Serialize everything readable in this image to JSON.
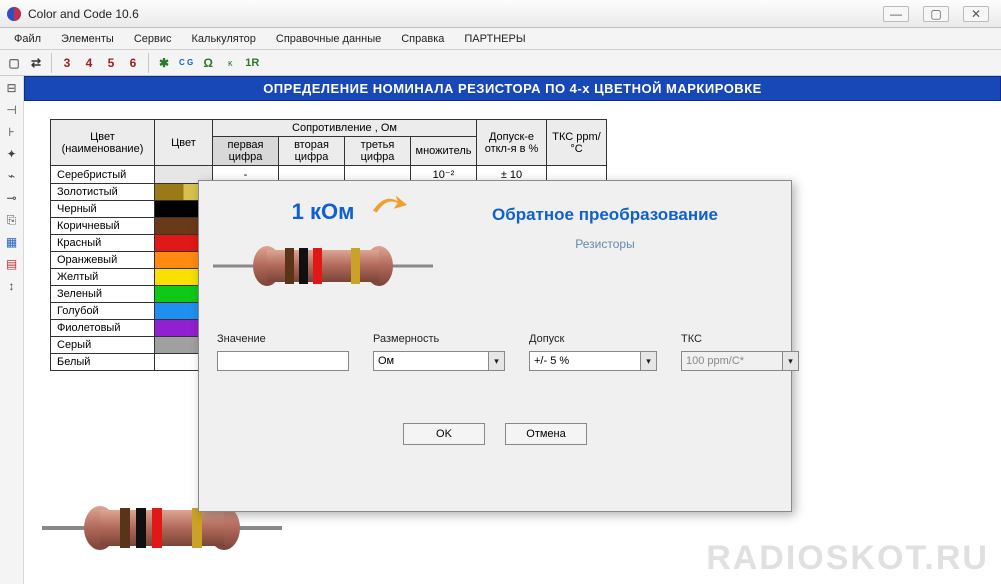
{
  "window": {
    "title": "Color and Code 10.6"
  },
  "menu": {
    "items": [
      "Файл",
      "Элементы",
      "Сервис",
      "Калькулятор",
      "Справочные данные",
      "Справка",
      "ПАРТНЕРЫ"
    ]
  },
  "toolbar": {
    "new_icon": "▢",
    "swap_icon": "⇄",
    "n3": "3",
    "n4": "4",
    "n5": "5",
    "n6": "6",
    "star_icon": "✱",
    "cg_icon": "C G",
    "ohm_icon": "Ω",
    "k_icon": "ᴋ",
    "one_r": "1R",
    "n3_color": "#a02020",
    "n4_color": "#a02020",
    "n5_color": "#a02020",
    "n6_color": "#a02020"
  },
  "left_icons": [
    "⊟",
    "⊣",
    "⊦",
    "✦",
    "⌁",
    "⊸",
    "⎘",
    "▦",
    "▤",
    "↕"
  ],
  "banner": "ОПРЕДЕЛЕНИЕ НОМИНАЛА РЕЗИСТОРА ПО 4-х ЦВЕТНОЙ МАРКИРОВКЕ",
  "table": {
    "head": {
      "name": "Цвет (наименование)",
      "color": "Цвет",
      "resist": "Сопротивление , Ом",
      "d1": "первая цифра",
      "d2": "вторая цифра",
      "d3": "третья цифра",
      "mult": "множитель",
      "tol": "Допуск-е откл-я в %",
      "tks": "ТКС ppm/°C"
    },
    "rows": [
      {
        "name": "Серебристый",
        "swatch": "#e6e6e6",
        "d1": "-",
        "d2": "",
        "d3": "",
        "mult": "10⁻²",
        "tol": "± 10",
        "tks": ""
      },
      {
        "name": "Золотистый",
        "swatch_split": [
          "#9a7a18",
          "#d8c050"
        ],
        "d1": "",
        "d2": "",
        "d3": "",
        "mult": "",
        "tol": "",
        "tks": ""
      },
      {
        "name": "Черный",
        "swatch": "#000000",
        "d1": "",
        "d2": "",
        "d3": "",
        "mult": "",
        "tol": "",
        "tks": ""
      },
      {
        "name": "Коричневый",
        "swatch": "#6a3a18",
        "d1": "",
        "d2": "",
        "d3": "",
        "mult": "",
        "tol": "",
        "tks": ""
      },
      {
        "name": "Красный",
        "swatch": "#e01818",
        "d1": "",
        "d2": "",
        "d3": "",
        "mult": "",
        "tol": "",
        "tks": ""
      },
      {
        "name": "Оранжевый",
        "swatch": "#ff8a10",
        "d1": "",
        "d2": "",
        "d3": "",
        "mult": "",
        "tol": "",
        "tks": ""
      },
      {
        "name": "Желтый",
        "swatch": "#f8e000",
        "d1": "",
        "d2": "",
        "d3": "",
        "mult": "",
        "tol": "",
        "tks": ""
      },
      {
        "name": "Зеленый",
        "swatch": "#10c818",
        "d1": "",
        "d2": "",
        "d3": "",
        "mult": "",
        "tol": "",
        "tks": ""
      },
      {
        "name": "Голубой",
        "swatch": "#2090f0",
        "d1": "",
        "d2": "",
        "d3": "",
        "mult": "",
        "tol": "",
        "tks": ""
      },
      {
        "name": "Фиолетовый",
        "swatch": "#9020d0",
        "d1": "",
        "d2": "",
        "d3": "",
        "mult": "",
        "tol": "",
        "tks": ""
      },
      {
        "name": "Серый",
        "swatch": "#a0a0a0",
        "d1": "",
        "d2": "",
        "d3": "",
        "mult": "",
        "tol": "",
        "tks": ""
      },
      {
        "name": "Белый",
        "swatch": "#ffffff",
        "d1": "",
        "d2": "",
        "d3": "",
        "mult": "",
        "tol": "",
        "tks": ""
      }
    ],
    "col_widths": {
      "name": 104,
      "swatch": 58,
      "d": 66,
      "mult": 66,
      "tol": 70,
      "tks": 60
    }
  },
  "resistor_main": {
    "body_color": "#b0685a",
    "body_highlight": "#dda592",
    "bands": [
      "#5a3418",
      "#101010",
      "#e01818",
      "#c9a227"
    ],
    "lead_color": "#888888"
  },
  "dialog": {
    "value_label": "1 кОм",
    "title": "Обратное преобразование",
    "subtitle": "Резисторы",
    "form": {
      "value_label": "Значение",
      "value_placeholder": "",
      "dim_label": "Размерность",
      "dim_value": "Ом",
      "tol_label": "Допуск",
      "tol_value": "+/- 5 %",
      "tks_label": "ТКС",
      "tks_value": "100 ppm/C*"
    },
    "ok": "OK",
    "cancel": "Отмена",
    "arrow_color": "#f0a030"
  },
  "watermark": "RADIOSKOT.RU"
}
